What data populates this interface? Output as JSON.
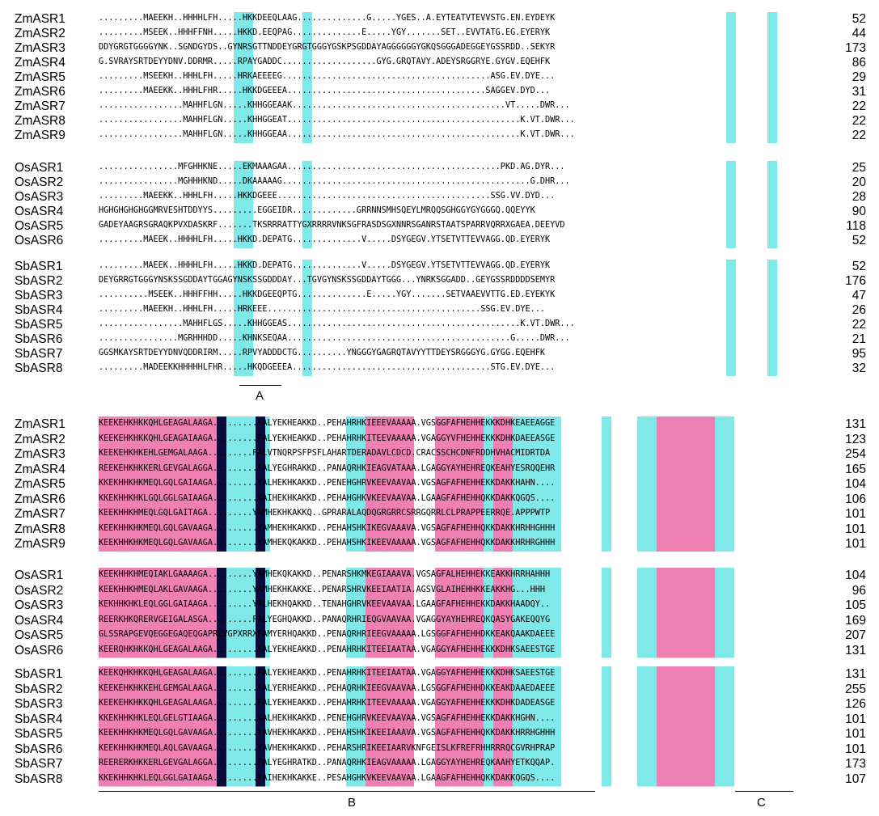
{
  "colors": {
    "cyan": "#7fe8e8",
    "pink": "#ee80b3",
    "navy": "#0c0c3c"
  },
  "block1": [
    {
      "name": "ZmASR1",
      "seq": ".........MAEEKH..HHHHLFH.....HKKDEEQLAAG..............G.....YGES..A.EYTEATVTEVVSTG.EN.EYDEYK",
      "num": "52"
    },
    {
      "name": "ZmASR2",
      "seq": ".........MSEEK..HHHFFNH.....HKKD.EEQPAG..............E.....YGY.......SET..EVVTATG.EG.EYERYK",
      "num": "44"
    },
    {
      "name": "ZmASR3",
      "seq": "DDYGRGTGGGGYNK..SGNDGYDS..GYNRSGTTNDDEYGRGTGGGYGSKPSGDDAYAGGGGGGYGKQSGGGADEGGEYGSSRDD..SEKYR",
      "num": "173"
    },
    {
      "name": "ZmASR4",
      "seq": "G.SVRAYSRTDEYYDNV.DDRMR.....RPAYGADDC...................GYG.GRQTAVY.ADEYSRGGRYE.GYGV.EQEHFK",
      "num": "86"
    },
    {
      "name": "ZmASR5",
      "seq": ".........MSEEKH..HHHLFH.....HRKAEEEEG..........................................ASG.EV.DYE...",
      "num": "29"
    },
    {
      "name": "ZmASR6",
      "seq": ".........MAEEKK..HHHLFHR.....HKKDGEEEA........................................SAGGEV.DYD...",
      "num": "31"
    },
    {
      "name": "ZmASR7",
      "seq": ".................MAHHFLGN.....KHHGGEAAK...........................................VT.....DWR...",
      "num": "22"
    },
    {
      "name": "ZmASR8",
      "seq": ".................MAHHFLGN.....KHHGGEAT...............................................K.VT.DWR...",
      "num": "22"
    },
    {
      "name": "ZmASR9",
      "seq": ".................MAHHFLGN.....KHHGGEAA...............................................K.VT.DWR...",
      "num": "22"
    }
  ],
  "block2": [
    {
      "name": "OsASR1",
      "seq": "................MFGHHKNE.....EKMAAAGAA...........................................PKD.AG.DYR...",
      "num": "25"
    },
    {
      "name": "OsASR2",
      "seq": "................MGHHHKND.....DKAAAAAG..................................................G.DHR...",
      "num": "20"
    },
    {
      "name": "OsASR3",
      "seq": ".........MAEEKK..HHHLFH.....HKKDGEEE...........................................SSG.VV.DYD...",
      "num": "28"
    },
    {
      "name": "OsASR4",
      "seq": "HGHGHGHGHGGMRVESHTDDYYS.........EGGEIDR.............GRRNNSMHSQEYLMRQQSGHGGYGYGGGQ.QQEYYK",
      "num": "90"
    },
    {
      "name": "OsASR5",
      "seq": "GADEYAAGRSGRAQKPVXDASKRF.......TKSRRRATTYGXRRRRVNKSGFRASDSGXNNRSGANRSTAATSPARRVQRRXGAEA.DEEYVD",
      "num": "118"
    },
    {
      "name": "OsASR6",
      "seq": ".........MAEEK..HHHHLFH.....HKKD.DEPATG..............V.....DSYGEGV.YTSETVTTEVVAGG.QD.EYERYK",
      "num": "52"
    }
  ],
  "block3": [
    {
      "name": "SbASR1",
      "seq": ".........MAEEK..HHHHLFH.....HKKD.DEPATG..............V.....DSYGEGV.YTSETVTTEVVAGG.QD.EYERYK",
      "num": "52"
    },
    {
      "name": "SbASR2",
      "seq": "DEYGRRGTGGGYNSKSSGDDAYTGGAGYNSKSSGDDDAY...TGVGYNSKSSGDDAYTGGG...YNRKSGGADD..GEYGSSRDDDDSEMYR",
      "num": "176"
    },
    {
      "name": "SbASR3",
      "seq": "..........MSEEK..HHHFFHH.....HKKDGEEQPTG..............E.....YGY.......SETVAAEVVTTG.ED.EYEKYK",
      "num": "47"
    },
    {
      "name": "SbASR4",
      "seq": ".........MAEEKH..HHHLFH.....HRKEEE...........................................SSG.EV.DYE...",
      "num": "26"
    },
    {
      "name": "SbASR5",
      "seq": ".................MAHHFLGS.....KHHGGEAS...............................................K.VT.DWR...",
      "num": "22"
    },
    {
      "name": "SbASR6",
      "seq": "................MGRHHHDD.....KHNKSEQAA.............................................G.....DWR...",
      "num": "21"
    },
    {
      "name": "SbASR7",
      "seq": "GGSMKAYSRTDEYYDNVQDDRIRM.....RPVYADDDCTG..........YNGGGYGAGRQTAVYYTTDEYSRGGGYG.GYGG.EQEHFK",
      "num": "95"
    },
    {
      "name": "SbASR8",
      "seq": ".........MADEEKKHHHHHLFHR.....HKQDGEEEA........................................STG.EV.DYE...",
      "num": "32"
    }
  ],
  "block4": [
    {
      "name": "ZmASR1",
      "seq": "KEEKEHKHKKQHLGEAGALAAGA.........FALYEKHEAKKD..PEHAHRHKIEEEVAAAAA.VGSGGFAFHEHHEKKKDHKEAEEAGGE",
      "num": "131"
    },
    {
      "name": "ZmASR2",
      "seq": "KEEKEHKHKKQHLGEAGAIAAGA.........FALYEKHEAKKD..PEHAHRHKITEEVAAAAA.VGAGGYVFHEHHEKKKDHKDAEEASGE",
      "num": "123"
    },
    {
      "name": "ZmASR3",
      "seq": "KEEKEHKHKEHLGEMGALAAGA.........FALVTNQRPSFPSFLAHARTDERADAVLCDCD.CRACSSCHCDNFRDDHVHACMIDRTDA",
      "num": "254"
    },
    {
      "name": "ZmASR4",
      "seq": "REEKEHKHKKERLGEVGALAGGA.........FALYEGHRAKKD..PANAQRHKIEAGVATAAA.LGAGGYAYHEHREQKEAHYESRQQEHR",
      "num": "165"
    },
    {
      "name": "ZmASR5",
      "seq": "KKEKHHKHKMEQLGQLGAIAAGA.........YALHEKHKAKKD..PENEHGHRVKEEVAAVAA.VGSAGFAFHEHHEKKDAKKHAHN....",
      "num": "104"
    },
    {
      "name": "ZmASR6",
      "seq": "KKEKHHKHKLGQLGGLGAIAAGA.........YAIHEKHKAKKD..PEHAHGHKVKEEVAAVAA.LGAAGFAFHEHHQKKDAKKQGQS....",
      "num": "106"
    },
    {
      "name": "ZmASR7",
      "seq": "KEEKHHKHMEQLGQLGAITAGA.........YAMHEKHKAKKQ..GPRARALAQDQGRGRRCSRRGQRRLCLPRAPPEERRQE.APPPWTP",
      "num": "101"
    },
    {
      "name": "ZmASR8",
      "seq": "KEEKHHKHKMEQLGQLGAVAAGA.........YAMHEKHKAKKD..PEHAHSHKIKEGVAAAVA.VGSAGFAFHEHHQKKDAKKHRHHGHHH",
      "num": "101"
    },
    {
      "name": "ZmASR9",
      "seq": "KEEKHHKHKMEQLGQLGAVAAGA.........YAMHEKQKAKKD..PEHAHSHKIKEEVAAAAA.VGSAGFAFHEHHQKKDAKKHRHRGHHH",
      "num": "101"
    }
  ],
  "block5": [
    {
      "name": "OsASR1",
      "seq": "KEEKHHKHMEQIAKLGAAAAGA.........YAMHEKQKAKKD..PENARSHKMKEGIAAAVA.VGSAGFALHEHHEKKEAKKHRRHAHHH",
      "num": "104"
    },
    {
      "name": "OsASR2",
      "seq": "KEEKHHKHMEQLAKLGAVAAGA.........YAMHEKHKAKKE..PENARSHRVKEEIAATIA.AGSVGLAIHEHHKKEAKKHG...HHH",
      "num": "96"
    },
    {
      "name": "OsASR3",
      "seq": "KEKHHKHKLEQLGGLGAIAAGA.........YALHEKHQAKKD..TENAHGHRVKEEVAAVAA.LGAAGFAFHEHHEKKDAKKHAADQY..",
      "num": "105"
    },
    {
      "name": "OsASR4",
      "seq": "REERKHKQRERVGEIGALASGA.........FALYEGHQAKKD..PANAQRHRIEQGVAAVAA.VGAGGYAYHEHREQKQASYGAKEQQYG",
      "num": "169"
    },
    {
      "name": "OsASR5",
      "seq": "GLSSRAPGEVQEGGEGAQEQGAPREVGPXRRXFAMYERHQAKKD..PENAQRHRIEEGVAAAAA.LGSGGFAFHEHHDKKEAKQAAKDAEEE",
      "num": "207"
    },
    {
      "name": "OsASR6",
      "seq": "KEERQHKHKKQHLGEAGALAAGA.........FALYEKHEAKKD..PENAHRHKITEEIAATAA.VGAGGYAFHEHHEKKKDHKSAEESTGE",
      "num": "131"
    }
  ],
  "block6": [
    {
      "name": "SbASR1",
      "seq": "KEEKQHKHKKQHLGEAGALAAGA.........FALYEKHEAKKD..PENAHRHKITEEIAATAA.VGAGGYAFHEHHEKKKDHKSAEESTGE",
      "num": "131"
    },
    {
      "name": "SbASR2",
      "seq": "KEEKEHKHKKEHLGEMGALAAGA.........FALYERHEAKKD..PEHAQRHKIEEGVAAVAA.LGSGGFAFHEHHDKKEAKDAAEDAEEE",
      "num": "255"
    },
    {
      "name": "SbASR3",
      "seq": "KEEKEHKHKKQHLGEAGALAAGA.........FALYEKHEAKKD..PEHAHRHKITEEVAAAAA.VGAGGYAFHEHHEKKKDHKDADEASGE",
      "num": "126"
    },
    {
      "name": "SbASR4",
      "seq": "KKEKHHKHKLEQLGELGTIAAGA.........YALHEKHKAKKD..PENEHGHRVKEEVAAVAA.VGSAGFAFHEHHEKKDAKKHGHN....",
      "num": "101"
    },
    {
      "name": "SbASR5",
      "seq": "KEEKHHKHKMEQLGQLGAVAAGA.........YAVHEKHKAKKD..PEHAHSHKIKEEIAAAVA.VGSAGFAFHEHHQKKDAKKHRRHGHHH",
      "num": "101"
    },
    {
      "name": "SbASR6",
      "seq": "KEEKHHKHKMEQLAQLGAVAAGA.........YAVHEKHKAKKD..PEHARSHRIKEEIAARVKNFGEISLKFREFRHHRRRQCGVRHPRAP",
      "num": "101"
    },
    {
      "name": "SbASR7",
      "seq": "REERERKHKKERLGEVGALAGGA.........FALYEGHRATKD..PANAQRHKIEAGVAAAAA.LGAGGYAYHEHREQKAAHYETKQQAP.",
      "num": "173"
    },
    {
      "name": "SbASR8",
      "seq": "KKEKHHKHKLEQLGGLGAIAAGA.........YAIHEKHKAKKE..PESAHGHKVKEEVAAVAA.LGAAGFAFHEHHQKKDAKKQGQS....",
      "num": "107"
    }
  ],
  "regions": {
    "a": "A",
    "b": "B",
    "c": "C"
  }
}
